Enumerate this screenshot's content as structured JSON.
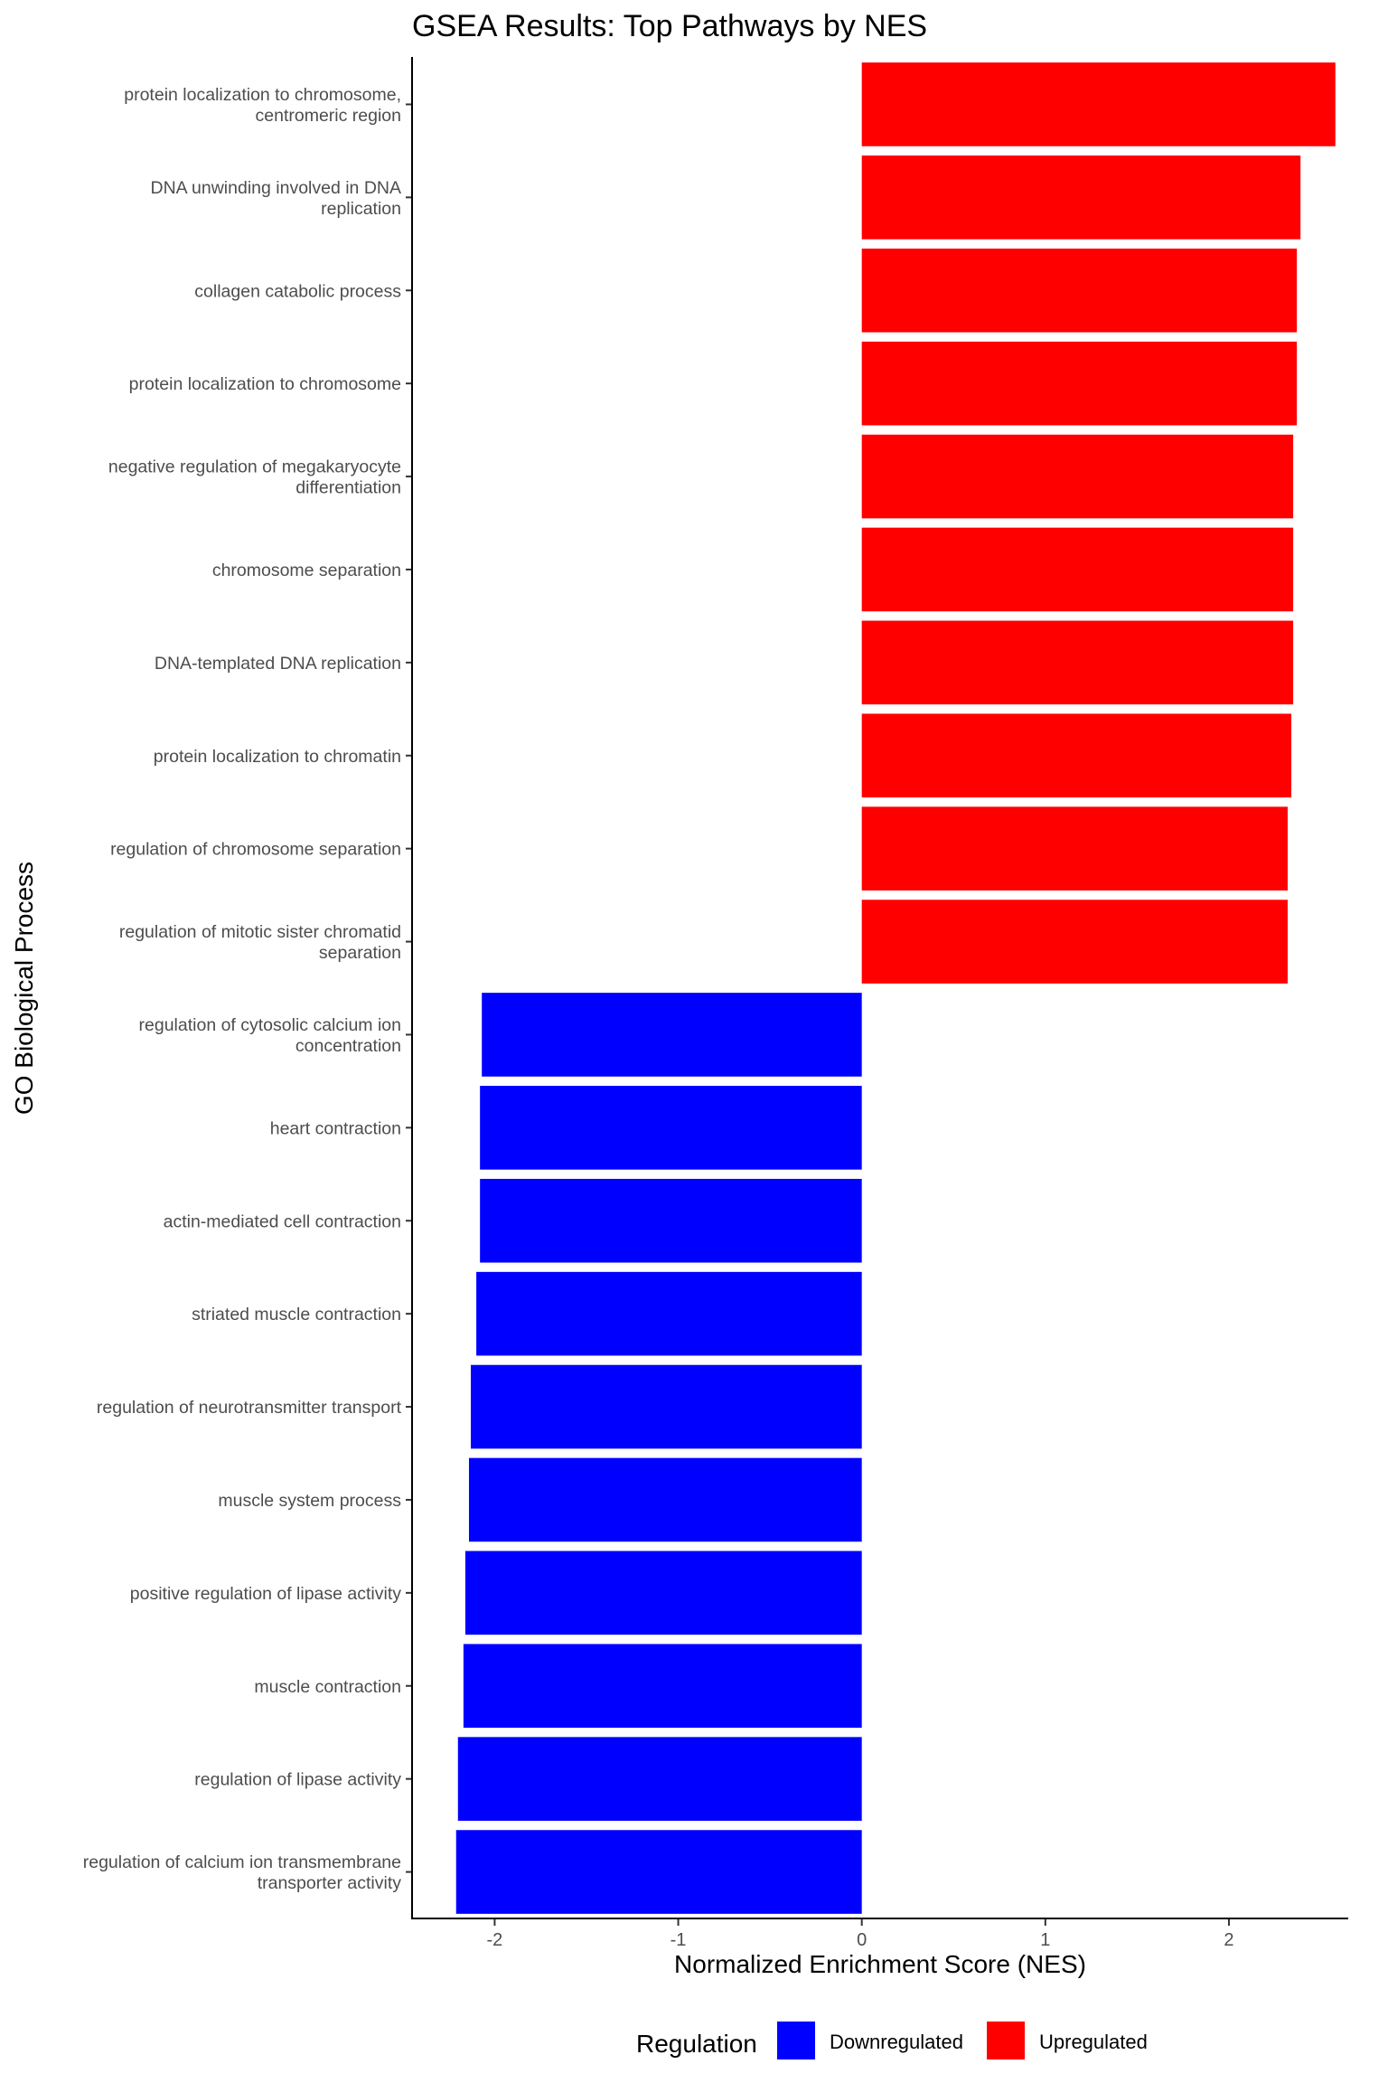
{
  "chart_data": {
    "type": "bar",
    "orientation": "horizontal",
    "title": "GSEA Results: Top Pathways by NES",
    "xlabel": "Normalized Enrichment Score (NES)",
    "ylabel": "GO Biological Process",
    "xlim": [
      -2.45,
      2.65
    ],
    "xticks": [
      -2,
      -1,
      0,
      1,
      2
    ],
    "xtick_labels": [
      "-2",
      "-1",
      "0",
      "1",
      "2"
    ],
    "grid": false,
    "legend_position": "bottom",
    "legend": {
      "title": "Regulation",
      "items": [
        {
          "label": "Downregulated",
          "color": "#0000ff"
        },
        {
          "label": "Upregulated",
          "color": "#ff0000"
        }
      ]
    },
    "categories": [
      [
        "protein localization to chromosome,",
        "centromeric region"
      ],
      [
        "DNA unwinding involved in DNA",
        "replication"
      ],
      [
        "collagen catabolic process"
      ],
      [
        "protein localization to chromosome"
      ],
      [
        "negative regulation of megakaryocyte",
        "differentiation"
      ],
      [
        "chromosome separation"
      ],
      [
        "DNA-templated DNA replication"
      ],
      [
        "protein localization to chromatin"
      ],
      [
        "regulation of chromosome separation"
      ],
      [
        "regulation of mitotic sister chromatid",
        "separation"
      ],
      [
        "regulation of cytosolic calcium ion",
        "concentration"
      ],
      [
        "heart contraction"
      ],
      [
        "actin-mediated cell contraction"
      ],
      [
        "striated muscle contraction"
      ],
      [
        "regulation of neurotransmitter transport"
      ],
      [
        "muscle system process"
      ],
      [
        "positive regulation of lipase activity"
      ],
      [
        "muscle contraction"
      ],
      [
        "regulation of lipase activity"
      ],
      [
        "regulation of calcium ion transmembrane",
        "transporter activity"
      ]
    ],
    "values": [
      2.58,
      2.39,
      2.37,
      2.37,
      2.35,
      2.35,
      2.35,
      2.34,
      2.32,
      2.32,
      -2.07,
      -2.08,
      -2.08,
      -2.1,
      -2.13,
      -2.14,
      -2.16,
      -2.17,
      -2.2,
      -2.21
    ],
    "regulation": [
      "Upregulated",
      "Upregulated",
      "Upregulated",
      "Upregulated",
      "Upregulated",
      "Upregulated",
      "Upregulated",
      "Upregulated",
      "Upregulated",
      "Upregulated",
      "Downregulated",
      "Downregulated",
      "Downregulated",
      "Downregulated",
      "Downregulated",
      "Downregulated",
      "Downregulated",
      "Downregulated",
      "Downregulated",
      "Downregulated"
    ],
    "colors": {
      "Upregulated": "#ff0000",
      "Downregulated": "#0000ff"
    }
  }
}
